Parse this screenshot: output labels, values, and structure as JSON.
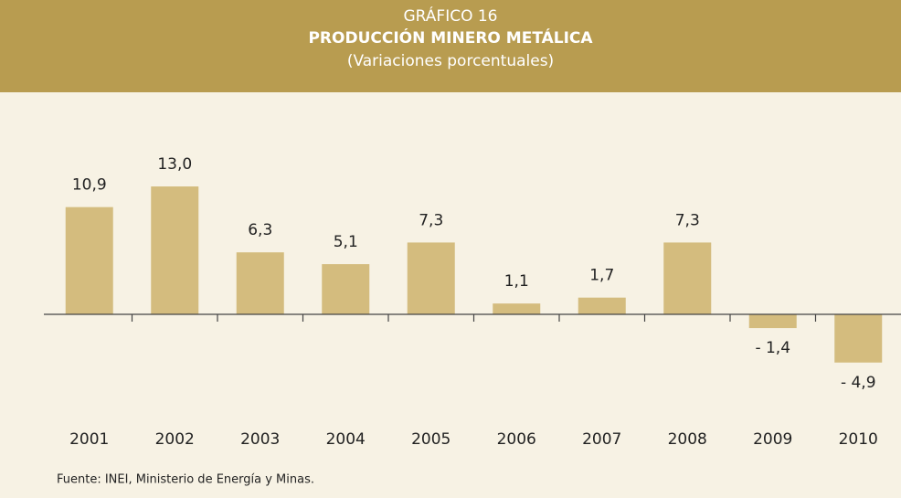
{
  "chart_data": {
    "type": "bar",
    "title": "GRÁFICO 16",
    "subtitle": "PRODUCCIÓN MINERO METÁLICA",
    "unit_note": "(Variaciones porcentuales)",
    "source": "Fuente: INEI, Ministerio de Energía y Minas.",
    "categories": [
      "2001",
      "2002",
      "2003",
      "2004",
      "2005",
      "2006",
      "2007",
      "2008",
      "2009",
      "2010"
    ],
    "values": [
      10.9,
      13.0,
      6.3,
      5.1,
      7.3,
      1.1,
      1.7,
      7.3,
      -1.4,
      -4.9
    ],
    "value_labels": [
      "10,9",
      "13,0",
      "6,3",
      "5,1",
      "7,3",
      "1,1",
      "1,7",
      "7,3",
      "- 1,4",
      "- 4,9"
    ],
    "color": "#d4bc7e",
    "ylim": [
      -6,
      15
    ]
  }
}
